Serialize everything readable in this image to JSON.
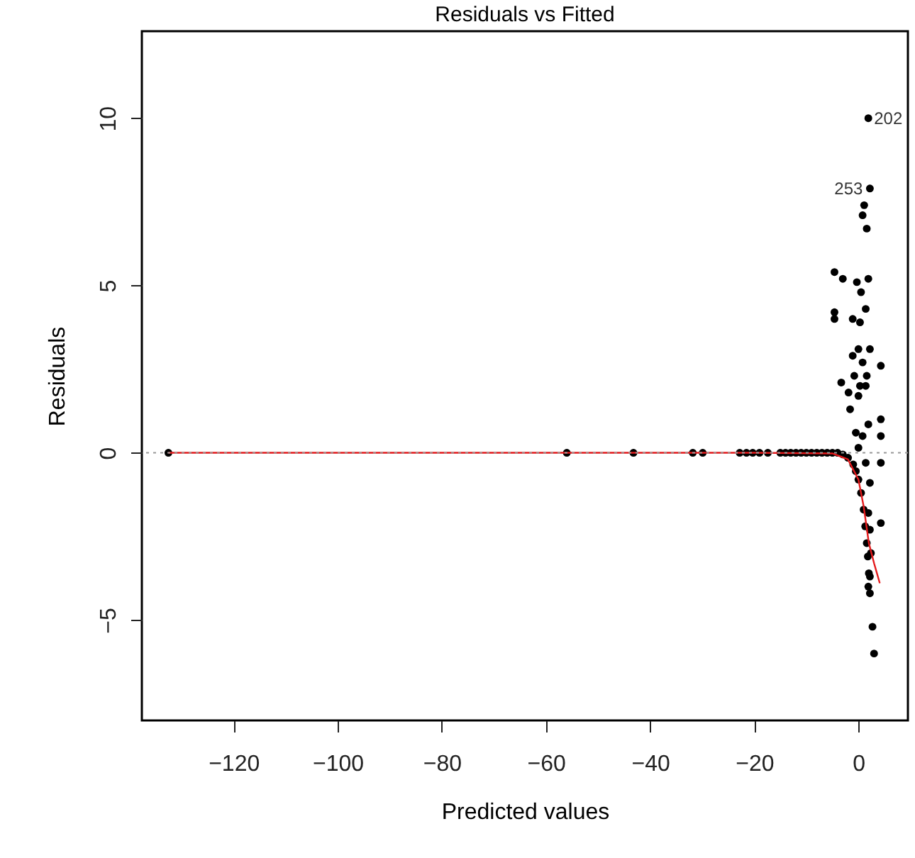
{
  "chart_data": {
    "type": "scatter",
    "title": "Residuals vs Fitted",
    "xlabel": "Predicted values",
    "ylabel": "Residuals",
    "xlim": [
      -137.6,
      9.5
    ],
    "ylim": [
      -8,
      12.6
    ],
    "xticks": [
      -120,
      -100,
      -80,
      -60,
      -40,
      -20,
      0
    ],
    "yticks": [
      -5,
      0,
      5,
      10
    ],
    "grid": false,
    "series": [
      {
        "marker": "circle",
        "color": "#000000",
        "x": [
          -132.5,
          -56.0,
          -43.2,
          -31.8,
          -29.9,
          -22.8,
          -21.5,
          -20.3,
          -19.0,
          -17.4,
          -15,
          -14,
          -13,
          -12,
          -11,
          -10,
          -9,
          -8,
          -7,
          -6,
          -5,
          -4,
          -3,
          -2,
          -1,
          -0.5,
          0,
          0.5,
          1,
          1.3,
          1.6,
          1.8,
          2.0,
          1.9,
          2.2,
          1.1,
          0.8,
          1.6,
          -4.6,
          -3.0,
          1.9,
          -0.3,
          0.5,
          -4.6,
          -4.6,
          -1.1,
          1.4,
          0.3,
          0.0,
          2.2,
          4.3,
          -1.1,
          0.8,
          -3.3,
          -0.8,
          0.3,
          1.6,
          -1.9,
          0.0,
          -1.6,
          1.4,
          4.3,
          1.9,
          -0.5,
          0.8,
          4.3,
          0.0,
          1.4,
          4.3,
          2.2,
          1.9,
          4.3,
          2.2,
          2.4,
          2.2,
          1.9,
          2.2,
          2.7,
          3.0
        ],
        "values": [
          0,
          0,
          0,
          0,
          0,
          0,
          0,
          0,
          0,
          0,
          0,
          0,
          0,
          0,
          0,
          0,
          0,
          0,
          0,
          0,
          0,
          0,
          -0.05,
          -0.15,
          -0.35,
          -0.55,
          -0.8,
          -1.2,
          -1.7,
          -2.2,
          -2.7,
          -3.1,
          -3.6,
          10.0,
          7.9,
          7.4,
          7.1,
          6.7,
          5.4,
          5.2,
          5.2,
          5.1,
          4.8,
          4.2,
          4.0,
          4.0,
          4.3,
          3.9,
          3.1,
          3.1,
          2.6,
          2.9,
          2.7,
          2.1,
          2.3,
          2.0,
          2.3,
          1.8,
          1.7,
          1.3,
          2.0,
          1.0,
          0.85,
          0.6,
          0.5,
          0.5,
          0.15,
          -0.3,
          -0.3,
          -0.9,
          -1.8,
          -2.1,
          -2.3,
          -3.0,
          -3.7,
          -4.0,
          -4.2,
          -5.2,
          -6.0
        ]
      },
      {
        "type": "line",
        "color": "#e41a1c",
        "x": [
          -132.5,
          -20,
          -5,
          -2,
          0,
          1,
          2,
          3,
          4.1
        ],
        "values": [
          0,
          0,
          -0.02,
          -0.2,
          -0.8,
          -1.6,
          -2.7,
          -3.3,
          -3.9
        ]
      }
    ],
    "ref_lines": [
      {
        "axis": "y",
        "value": 0,
        "color": "#999999",
        "line_style": "dotted"
      }
    ],
    "annotations": [
      {
        "text": "202",
        "x": 1.9,
        "y": 10.0
      },
      {
        "text": "253",
        "x": 2.2,
        "y": 7.9
      }
    ]
  }
}
